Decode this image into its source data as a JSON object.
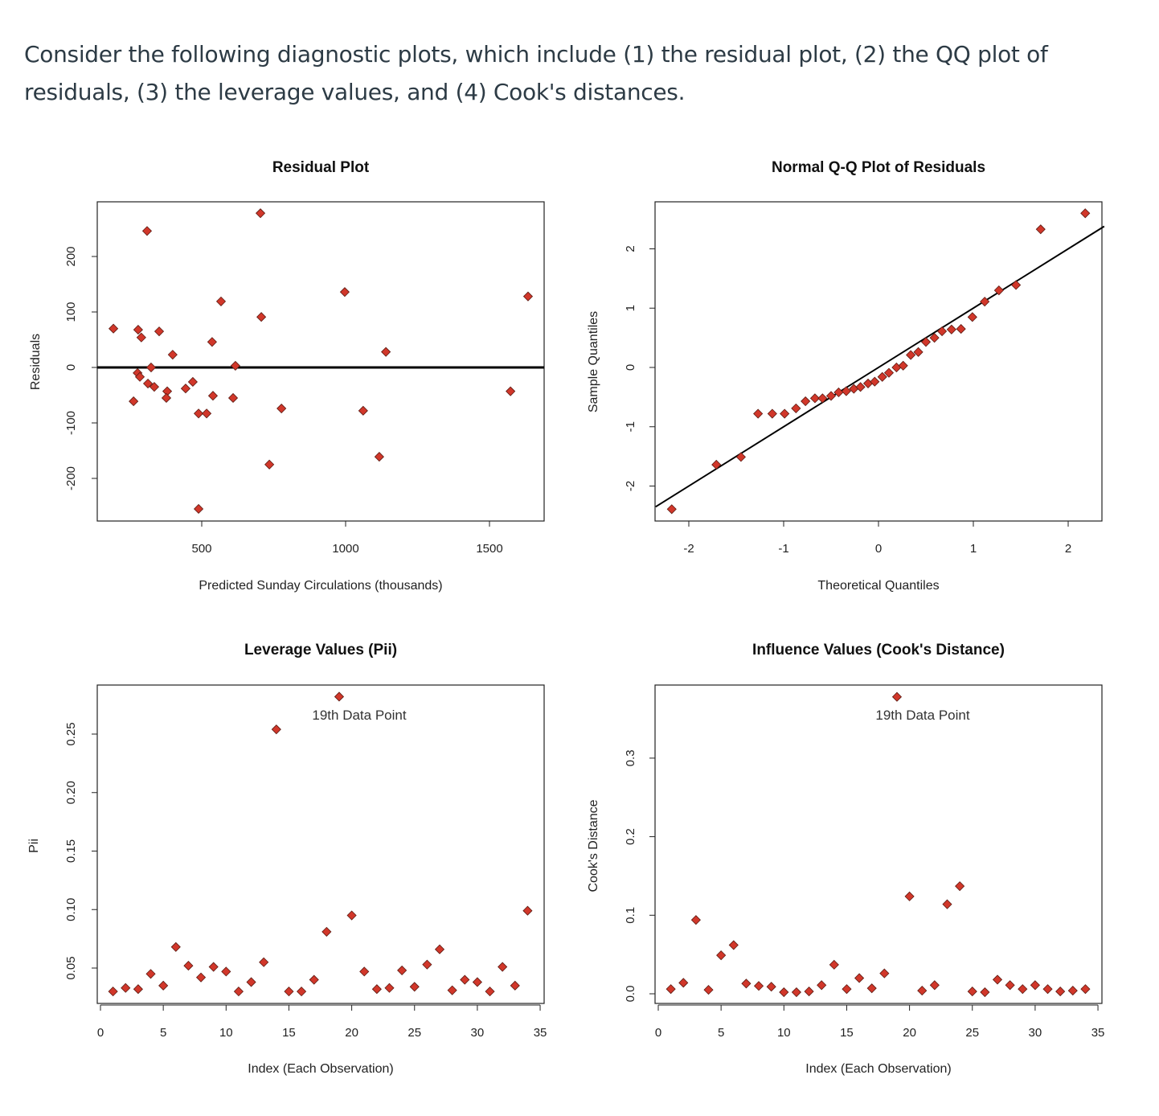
{
  "question": {
    "text": "Consider the following diagnostic plots, which include (1) the residual plot, (2) the QQ plot of residuals, (3) the leverage values, and (4) Cook's distances."
  },
  "marker_color": "#d1372a",
  "marker_edge": "#5a1a12",
  "chart_data": [
    {
      "type": "scatter",
      "title": "Residual Plot",
      "xlabel": "Predicted Sunday Circulations (thousands)",
      "ylabel": "Residuals",
      "xticks": [
        500,
        1000,
        1500
      ],
      "yticks": [
        -200,
        -100,
        0,
        100,
        200
      ],
      "hline": 0,
      "x": [
        193,
        310,
        279,
        290,
        352,
        399,
        263,
        277,
        285,
        324,
        313,
        335,
        380,
        377,
        444,
        469,
        489,
        517,
        489,
        536,
        539,
        567,
        609,
        617,
        704,
        707,
        735,
        777,
        997,
        1061,
        1117,
        1140,
        1573,
        1634
      ],
      "y": [
        70,
        246,
        68,
        54,
        65,
        23,
        -61,
        -10,
        -17,
        0,
        -29,
        -35,
        -43,
        -55,
        -38,
        -26,
        -83,
        -83,
        -255,
        46,
        -51,
        119,
        -55,
        3,
        278,
        91,
        -175,
        -74,
        136,
        -78,
        -161,
        28,
        -43,
        128
      ]
    },
    {
      "type": "scatter",
      "title": "Normal Q-Q Plot of Residuals",
      "xlabel": "Theoretical Quantiles",
      "ylabel": "Sample Quantiles",
      "xticks": [
        -2,
        -1,
        0,
        1,
        2
      ],
      "yticks": [
        -2,
        -1,
        0,
        1,
        2
      ],
      "qqline": {
        "intercept": 0,
        "slope": 1.0
      },
      "x": [
        -2.18,
        -1.71,
        -1.45,
        -1.27,
        -1.12,
        -0.99,
        -0.87,
        -0.77,
        -0.67,
        -0.59,
        -0.5,
        -0.42,
        -0.34,
        -0.26,
        -0.19,
        -0.11,
        -0.04,
        0.04,
        0.11,
        0.19,
        0.26,
        0.34,
        0.42,
        0.5,
        0.59,
        0.67,
        0.77,
        0.87,
        0.99,
        1.12,
        1.27,
        1.45,
        1.71,
        2.18
      ],
      "y": [
        -2.39,
        -1.64,
        -1.51,
        -0.78,
        -0.78,
        -0.78,
        -0.69,
        -0.57,
        -0.52,
        -0.52,
        -0.48,
        -0.42,
        -0.4,
        -0.36,
        -0.33,
        -0.27,
        -0.24,
        -0.16,
        -0.09,
        0.0,
        0.03,
        0.21,
        0.26,
        0.43,
        0.5,
        0.61,
        0.64,
        0.65,
        0.85,
        1.11,
        1.3,
        1.39,
        2.33,
        2.6
      ]
    },
    {
      "type": "scatter",
      "title": "Leverage Values (Pii)",
      "xlabel": "Index (Each Observation)",
      "ylabel": "Pii",
      "xticks": [
        0,
        5,
        10,
        15,
        20,
        25,
        30,
        35
      ],
      "yticks": [
        0.05,
        0.1,
        0.15,
        0.2,
        0.25
      ],
      "ytick_labels": [
        "0.05",
        "0.10",
        "0.15",
        "0.20",
        "0.25"
      ],
      "annotation": "19th Data Point",
      "x": [
        1,
        2,
        3,
        4,
        5,
        6,
        7,
        8,
        9,
        10,
        11,
        12,
        13,
        14,
        15,
        16,
        17,
        18,
        19,
        20,
        21,
        22,
        23,
        24,
        25,
        26,
        27,
        28,
        29,
        30,
        31,
        32,
        33,
        34
      ],
      "y": [
        0.03,
        0.033,
        0.032,
        0.045,
        0.035,
        0.068,
        0.052,
        0.042,
        0.051,
        0.047,
        0.03,
        0.038,
        0.055,
        0.254,
        0.03,
        0.03,
        0.04,
        0.081,
        0.282,
        0.095,
        0.047,
        0.032,
        0.033,
        0.048,
        0.034,
        0.053,
        0.066,
        0.031,
        0.04,
        0.038,
        0.03,
        0.051,
        0.035,
        0.099
      ]
    },
    {
      "type": "scatter",
      "title": "Influence Values (Cook's Distance)",
      "xlabel": "Index (Each Observation)",
      "ylabel": "Cook's Distance",
      "xticks": [
        0,
        5,
        10,
        15,
        20,
        25,
        30,
        35
      ],
      "yticks": [
        0.0,
        0.1,
        0.2,
        0.3
      ],
      "ytick_labels": [
        "0.0",
        "0.1",
        "0.2",
        "0.3"
      ],
      "annotation": "19th Data Point",
      "x": [
        1,
        2,
        3,
        4,
        5,
        6,
        7,
        8,
        9,
        10,
        11,
        12,
        13,
        14,
        15,
        16,
        17,
        18,
        19,
        20,
        21,
        22,
        23,
        24,
        25,
        26,
        27,
        28,
        29,
        30,
        31,
        32,
        33,
        34
      ],
      "y": [
        0.006,
        0.014,
        0.094,
        0.005,
        0.049,
        0.062,
        0.013,
        0.01,
        0.009,
        0.002,
        0.002,
        0.003,
        0.011,
        0.037,
        0.006,
        0.02,
        0.007,
        0.026,
        0.378,
        0.124,
        0.004,
        0.011,
        0.114,
        0.137,
        0.003,
        0.002,
        0.018,
        0.011,
        0.006,
        0.011,
        0.006,
        0.003,
        0.004,
        0.006
      ]
    }
  ]
}
